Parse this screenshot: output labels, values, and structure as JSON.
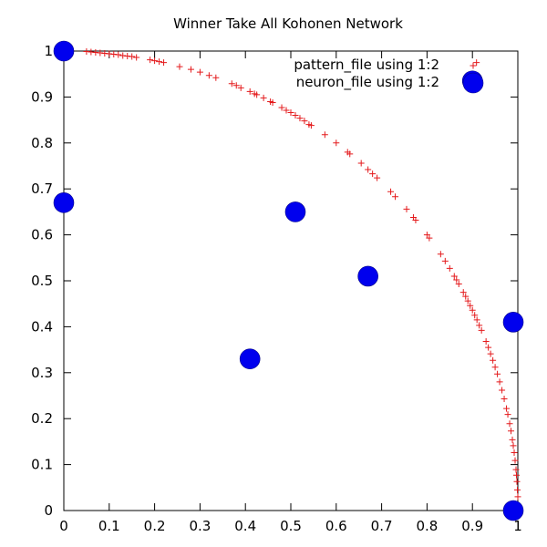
{
  "chart_data": {
    "type": "scatter",
    "title": "Winner Take All Kohonen Network",
    "xlabel": "",
    "ylabel": "",
    "xlim": [
      0,
      1
    ],
    "ylim": [
      0,
      1
    ],
    "grid": false,
    "legend_position": "top-right",
    "x_ticks": [
      "0",
      "0.1",
      "0.2",
      "0.3",
      "0.4",
      "0.5",
      "0.6",
      "0.7",
      "0.8",
      "0.9",
      "1"
    ],
    "y_ticks": [
      "0",
      "0.1",
      "0.2",
      "0.3",
      "0.4",
      "0.5",
      "0.6",
      "0.7",
      "0.8",
      "0.9",
      "1"
    ],
    "series": [
      {
        "name": "pattern_file using 1:2",
        "marker": "plus",
        "color": "#e41a1c",
        "points": [
          [
            0.0,
            1.0
          ],
          [
            0.05,
            0.999
          ],
          [
            0.06,
            0.998
          ],
          [
            0.07,
            0.997
          ],
          [
            0.08,
            0.996
          ],
          [
            0.09,
            0.995
          ],
          [
            0.1,
            0.994
          ],
          [
            0.11,
            0.993
          ],
          [
            0.12,
            0.992
          ],
          [
            0.13,
            0.99
          ],
          [
            0.14,
            0.989
          ],
          [
            0.15,
            0.988
          ],
          [
            0.16,
            0.986
          ],
          [
            0.19,
            0.981
          ],
          [
            0.2,
            0.979
          ],
          [
            0.21,
            0.977
          ],
          [
            0.22,
            0.975
          ],
          [
            0.255,
            0.966
          ],
          [
            0.28,
            0.96
          ],
          [
            0.3,
            0.954
          ],
          [
            0.32,
            0.947
          ],
          [
            0.335,
            0.942
          ],
          [
            0.37,
            0.929
          ],
          [
            0.38,
            0.925
          ],
          [
            0.39,
            0.92
          ],
          [
            0.41,
            0.912
          ],
          [
            0.42,
            0.907
          ],
          [
            0.425,
            0.905
          ],
          [
            0.44,
            0.898
          ],
          [
            0.455,
            0.89
          ],
          [
            0.46,
            0.888
          ],
          [
            0.48,
            0.877
          ],
          [
            0.49,
            0.871
          ],
          [
            0.5,
            0.866
          ],
          [
            0.51,
            0.86
          ],
          [
            0.52,
            0.854
          ],
          [
            0.53,
            0.848
          ],
          [
            0.54,
            0.84
          ],
          [
            0.545,
            0.838
          ],
          [
            0.575,
            0.818
          ],
          [
            0.6,
            0.8
          ],
          [
            0.625,
            0.78
          ],
          [
            0.63,
            0.776
          ],
          [
            0.655,
            0.756
          ],
          [
            0.67,
            0.742
          ],
          [
            0.68,
            0.733
          ],
          [
            0.69,
            0.724
          ],
          [
            0.72,
            0.694
          ],
          [
            0.73,
            0.683
          ],
          [
            0.755,
            0.656
          ],
          [
            0.77,
            0.638
          ],
          [
            0.775,
            0.632
          ],
          [
            0.8,
            0.6
          ],
          [
            0.805,
            0.593
          ],
          [
            0.83,
            0.558
          ],
          [
            0.84,
            0.543
          ],
          [
            0.85,
            0.527
          ],
          [
            0.86,
            0.51
          ],
          [
            0.865,
            0.502
          ],
          [
            0.87,
            0.493
          ],
          [
            0.88,
            0.475
          ],
          [
            0.885,
            0.466
          ],
          [
            0.89,
            0.456
          ],
          [
            0.895,
            0.446
          ],
          [
            0.9,
            0.436
          ],
          [
            0.905,
            0.425
          ],
          [
            0.91,
            0.415
          ],
          [
            0.915,
            0.403
          ],
          [
            0.92,
            0.392
          ],
          [
            0.93,
            0.368
          ],
          [
            0.935,
            0.355
          ],
          [
            0.94,
            0.341
          ],
          [
            0.945,
            0.327
          ],
          [
            0.95,
            0.312
          ],
          [
            0.955,
            0.297
          ],
          [
            0.96,
            0.28
          ],
          [
            0.965,
            0.262
          ],
          [
            0.97,
            0.243
          ],
          [
            0.975,
            0.222
          ],
          [
            0.978,
            0.209
          ],
          [
            0.982,
            0.189
          ],
          [
            0.985,
            0.173
          ],
          [
            0.988,
            0.154
          ],
          [
            0.99,
            0.141
          ],
          [
            0.992,
            0.126
          ],
          [
            0.994,
            0.109
          ],
          [
            0.996,
            0.089
          ],
          [
            0.997,
            0.077
          ],
          [
            0.998,
            0.063
          ],
          [
            0.999,
            0.045
          ],
          [
            1.0,
            0.03
          ],
          [
            1.0,
            0.0
          ],
          [
            0.909,
            0.975
          ]
        ]
      },
      {
        "name": "neuron_file using 1:2",
        "marker": "circle",
        "color": "#0000ee",
        "points": [
          [
            0.0,
            1.0
          ],
          [
            0.0,
            0.67
          ],
          [
            0.41,
            0.33
          ],
          [
            0.51,
            0.65
          ],
          [
            0.67,
            0.51
          ],
          [
            0.9,
            0.935
          ],
          [
            0.99,
            0.41
          ],
          [
            0.99,
            0.0
          ]
        ]
      }
    ]
  }
}
